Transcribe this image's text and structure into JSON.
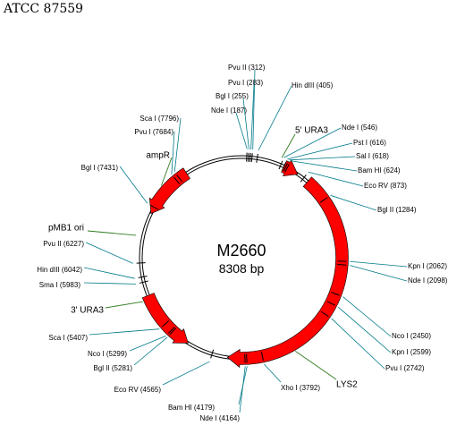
{
  "title": "ATCC 87559",
  "plasmid": {
    "name": "M2660",
    "size": "8308 bp"
  },
  "colors": {
    "backbone": "#000000",
    "feature": "#ff0000",
    "site_leader": "#007a8a",
    "feature_leader": "#2f7d1e"
  },
  "restriction_sites": [
    {
      "label": "Pvu   II (312)"
    },
    {
      "label": "Pvu   I (283)"
    },
    {
      "label": "Bgl   I (255)"
    },
    {
      "label": "Nde   I (187)"
    },
    {
      "label": "Hin   dIII (405)"
    },
    {
      "label": "Nde   I (546)"
    },
    {
      "label": "Pst   I (616)"
    },
    {
      "label": "Sal   I (618)"
    },
    {
      "label": "Bam   HI (624)"
    },
    {
      "label": "Eco   RV (873)"
    },
    {
      "label": "Bgl   II (1284)"
    },
    {
      "label": "Kpn   I (2062)"
    },
    {
      "label": "Nde   I (2098)"
    },
    {
      "label": "Nco   I (2450)"
    },
    {
      "label": "Kpn   I (2599)"
    },
    {
      "label": "Pvu   I (2742)"
    },
    {
      "label": "Xho   I (3792)"
    },
    {
      "label": "Bam   HI (4179)"
    },
    {
      "label": "Nde   I (4164)"
    },
    {
      "label": "Eco   RV (4565)"
    },
    {
      "label": "Bgl   II (5281)"
    },
    {
      "label": "Nco   I (5299)"
    },
    {
      "label": "Sca   I (5407)"
    },
    {
      "label": "Sma   I (5983)"
    },
    {
      "label": "Hin   dIII (6042)"
    },
    {
      "label": "Pvu   II (6227)"
    },
    {
      "label": "Bgl   I (7431)"
    },
    {
      "label": "Pvu   I (7684)"
    },
    {
      "label": "Sca   I (7796)"
    }
  ],
  "features": [
    {
      "label": "5' URA3"
    },
    {
      "label": "LYS2"
    },
    {
      "label": "3' URA3"
    },
    {
      "label": "pMB1 ori"
    },
    {
      "label": "ampR"
    }
  ]
}
